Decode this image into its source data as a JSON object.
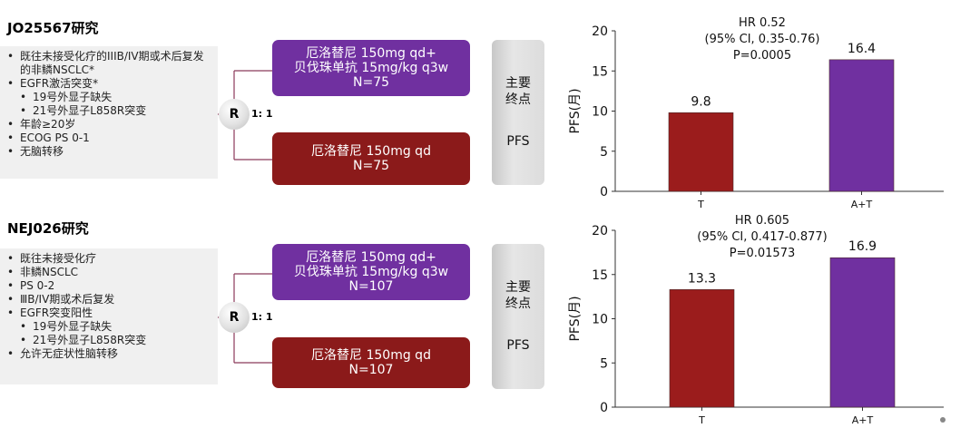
{
  "studies": [
    {
      "title": "JO25567研究",
      "criteria": [
        {
          "text": "既往未接受化疗的IIIB/IV期或术后复发的非鳞NSCLC*",
          "sub": false
        },
        {
          "text": "EGFR激活突变*",
          "sub": false
        },
        {
          "text": "19号外显子缺失",
          "sub": true
        },
        {
          "text": "21号外显子L858R突变",
          "sub": true
        },
        {
          "text": "年龄≥20岁",
          "sub": false
        },
        {
          "text": "ECOG PS 0-1",
          "sub": false
        },
        {
          "text": "无脑转移",
          "sub": false
        }
      ],
      "randomization": "R",
      "ratio": "1: 1",
      "arms": [
        {
          "line1": "厄洛替尼 150mg qd+",
          "line2": "贝伐珠单抗 15mg/kg q3w",
          "n": "N=75",
          "color": "#7030a0"
        },
        {
          "line1": "厄洛替尼 150mg qd",
          "line2": "",
          "n": "N=75",
          "color": "#8b1a1a"
        }
      ],
      "endpoint": {
        "line1": "主要",
        "line2": "终点",
        "value": "PFS"
      }
    },
    {
      "title": "NEJ026研究",
      "criteria": [
        {
          "text": "既往未接受化疗",
          "sub": false
        },
        {
          "text": "非鳞NSCLC",
          "sub": false
        },
        {
          "text": "PS 0-2",
          "sub": false
        },
        {
          "text": "ⅢB/IV期或术后复发",
          "sub": false
        },
        {
          "text": "EGFR突变阳性",
          "sub": false
        },
        {
          "text": "19号外显子缺失",
          "sub": true
        },
        {
          "text": "21号外显子L858R突变",
          "sub": true
        },
        {
          "text": "允许无症状性脑转移",
          "sub": false
        }
      ],
      "randomization": "R",
      "ratio": "1: 1",
      "arms": [
        {
          "line1": "厄洛替尼 150mg qd+",
          "line2": "贝伐珠单抗 15mg/kg q3w",
          "n": "N=107",
          "color": "#7030a0"
        },
        {
          "line1": "厄洛替尼 150mg qd",
          "line2": "",
          "n": "N=107",
          "color": "#8b1a1a"
        }
      ],
      "endpoint": {
        "line1": "主要",
        "line2": "终点",
        "value": "PFS"
      }
    }
  ],
  "chart_data": [
    {
      "type": "bar",
      "categories": [
        "T",
        "A+T"
      ],
      "values": [
        9.8,
        16.4
      ],
      "colors": [
        "#9b1c1c",
        "#7030a0"
      ],
      "ylabel": "PFS(月)",
      "ylim": [
        0,
        20
      ],
      "yticks": [
        0,
        5,
        10,
        15,
        20
      ],
      "annotation": [
        "HR 0.52",
        "(95% CI, 0.35-0.76)",
        "P=0.0005"
      ]
    },
    {
      "type": "bar",
      "categories": [
        "T",
        "A+T"
      ],
      "values": [
        13.3,
        16.9
      ],
      "colors": [
        "#9b1c1c",
        "#7030a0"
      ],
      "ylabel": "PFS(月)",
      "ylim": [
        0,
        20
      ],
      "yticks": [
        0,
        5,
        10,
        15,
        20
      ],
      "annotation": [
        "HR 0.605",
        "(95% CI, 0.417-0.877)",
        "P=0.01573"
      ]
    }
  ]
}
